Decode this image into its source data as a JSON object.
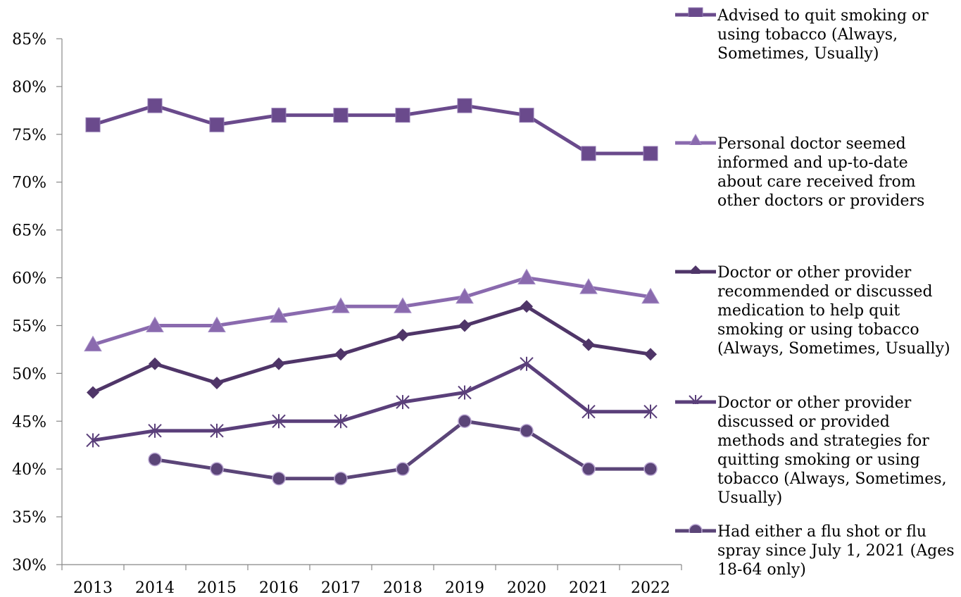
{
  "chart_data": {
    "type": "line",
    "categories": [
      "2013",
      "2014",
      "2015",
      "2016",
      "2017",
      "2018",
      "2019",
      "2020",
      "2021",
      "2022"
    ],
    "ylim": [
      30,
      85
    ],
    "yticks": [
      "30%",
      "35%",
      "40%",
      "45%",
      "50%",
      "55%",
      "60%",
      "65%",
      "70%",
      "75%",
      "80%",
      "85%"
    ],
    "grid": false,
    "legend_position": "right",
    "series": [
      {
        "name": "Advised to quit smoking or using tobacco (Always, Sometimes, Usually)",
        "marker": "square",
        "color": "#6a4a8c",
        "values": [
          76,
          78,
          76,
          77,
          77,
          77,
          78,
          77,
          73,
          73
        ]
      },
      {
        "name": "Personal doctor seemed informed and up-to-date about care received from other doctors or providers",
        "marker": "triangle",
        "color": "#8a6aae",
        "values": [
          53,
          55,
          55,
          56,
          57,
          57,
          58,
          60,
          59,
          58
        ]
      },
      {
        "name": "Doctor or other provider recommended or discussed medication to help quit smoking or using tobacco (Always, Sometimes, Usually)",
        "marker": "diamond",
        "color": "#4f3568",
        "values": [
          48,
          51,
          49,
          51,
          52,
          54,
          55,
          57,
          53,
          52
        ]
      },
      {
        "name": "Doctor or other provider discussed or provided methods and strategies for quitting smoking or using tobacco (Always, Sometimes, Usually)",
        "marker": "star",
        "color": "#5a3f7a",
        "values": [
          43,
          44,
          44,
          45,
          45,
          47,
          48,
          51,
          46,
          46
        ]
      },
      {
        "name": "Had either a flu shot or flu spray since July 1, 2021 (Ages 18-64 only)",
        "marker": "circle",
        "color": "#5b4578",
        "values": [
          null,
          41,
          40,
          39,
          39,
          40,
          45,
          44,
          40,
          40
        ]
      }
    ]
  }
}
